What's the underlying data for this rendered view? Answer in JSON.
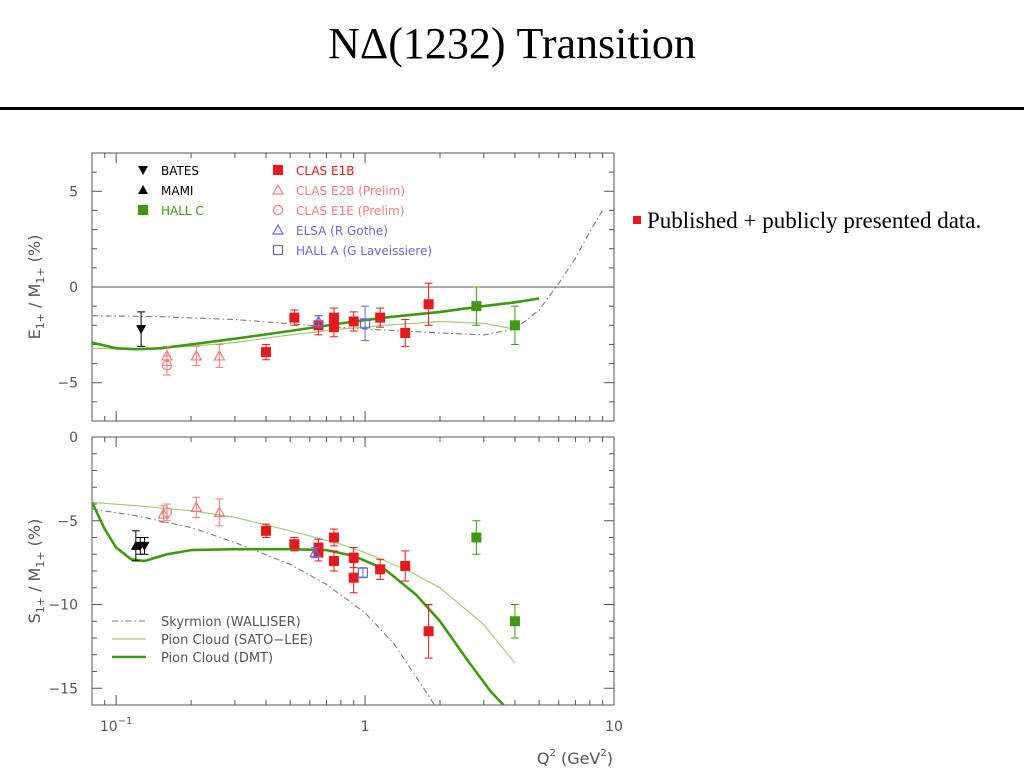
{
  "slide": {
    "title": "NΔ(1232) Transition",
    "bullet_text": "Published + publicly presented data."
  },
  "colors": {
    "red": "#e41a1c",
    "light_red": "#ef7d7d",
    "green": "#3f9a12",
    "light_green": "#a3cc78",
    "blue": "#6a6ad0",
    "gray": "#7a7a7a",
    "axis": "#555555"
  },
  "chart_data": [
    {
      "type": "scatter",
      "panel": "top",
      "x_scale": "log",
      "xlim": [
        0.08,
        10
      ],
      "ylim": [
        -7,
        7
      ],
      "yticks": [
        5,
        0,
        -5
      ],
      "ylabel_main": "E",
      "ylabel_sub1": "1+",
      "ylabel_mid": " / M",
      "ylabel_sub2": "1+",
      "ylabel_end": " (%)",
      "zero_line": true,
      "legend": [
        {
          "label": "BATES",
          "marker": "triangle-down",
          "color": "#000000"
        },
        {
          "label": "MAMI",
          "marker": "triangle-up",
          "color": "#000000"
        },
        {
          "label": "HALL C",
          "marker": "square",
          "color": "#3f9a12"
        },
        {
          "label": "CLAS E1B",
          "marker": "square",
          "color": "#e41a1c"
        },
        {
          "label": "CLAS E2B (Prelim)",
          "marker": "open-triangle",
          "color": "#ef7d7d"
        },
        {
          "label": "CLAS E1E (Prelim)",
          "marker": "open-circle",
          "color": "#ef7d7d"
        },
        {
          "label": "ELSA (R Gothe)",
          "marker": "open-triangle",
          "color": "#6a6ad0"
        },
        {
          "label": "HALL A (G Laveissiere)",
          "marker": "open-square",
          "color": "#6a6ad0"
        }
      ],
      "series": [
        {
          "marker": "triangle-down",
          "color": "#000000",
          "points": [
            [
              0.126,
              -2.2,
              0.9
            ]
          ]
        },
        {
          "marker": "square",
          "color": "#e41a1c",
          "points": [
            [
              0.4,
              -3.4,
              0.4
            ],
            [
              0.52,
              -1.6,
              0.4
            ],
            [
              0.65,
              -2.0,
              0.5
            ],
            [
              0.75,
              -1.6,
              0.5
            ],
            [
              0.75,
              -2.1,
              0.5
            ],
            [
              0.9,
              -1.8,
              0.5
            ],
            [
              1.15,
              -1.6,
              0.5
            ],
            [
              1.45,
              -2.4,
              0.7
            ],
            [
              1.8,
              -0.9,
              1.1
            ]
          ]
        },
        {
          "marker": "square",
          "color": "#3f9a12",
          "points": [
            [
              2.8,
              -1.0,
              1.0
            ],
            [
              4.0,
              -2.0,
              1.0
            ]
          ]
        },
        {
          "marker": "open-triangle",
          "color": "#ef7d7d",
          "points": [
            [
              0.16,
              -3.6,
              0.5
            ],
            [
              0.21,
              -3.6,
              0.5
            ],
            [
              0.26,
              -3.6,
              0.6
            ]
          ]
        },
        {
          "marker": "open-circle",
          "color": "#ef7d7d",
          "points": [
            [
              0.16,
              -4.1,
              0.5
            ]
          ]
        },
        {
          "marker": "open-triangle",
          "color": "#6a6ad0",
          "points": [
            [
              0.65,
              -1.8,
              0.3
            ]
          ]
        },
        {
          "marker": "open-square",
          "color": "#6a6ad0",
          "points": [
            [
              1.0,
              -1.9,
              0.9
            ]
          ]
        }
      ],
      "curves": [
        {
          "style": "dashdot",
          "color": "#7a7a7a",
          "points": [
            [
              0.08,
              -1.5
            ],
            [
              0.15,
              -1.55
            ],
            [
              0.3,
              -1.7
            ],
            [
              0.6,
              -2.0
            ],
            [
              1.0,
              -2.2
            ],
            [
              2.0,
              -2.4
            ],
            [
              3.0,
              -2.5
            ],
            [
              4.0,
              -2.2
            ],
            [
              5.0,
              -1.2
            ],
            [
              6.0,
              0.2
            ],
            [
              7.0,
              1.5
            ],
            [
              8.0,
              2.9
            ],
            [
              9.0,
              4.0
            ]
          ]
        },
        {
          "style": "thin",
          "color": "#a3cc78",
          "points": [
            [
              0.08,
              -3.2
            ],
            [
              0.12,
              -3.25
            ],
            [
              0.2,
              -3.1
            ],
            [
              0.3,
              -2.9
            ],
            [
              0.5,
              -2.5
            ],
            [
              0.8,
              -2.2
            ],
            [
              1.2,
              -2.0
            ],
            [
              2.0,
              -1.8
            ],
            [
              3.0,
              -1.9
            ],
            [
              4.0,
              -2.2
            ]
          ]
        },
        {
          "style": "thick",
          "color": "#3f9a12",
          "points": [
            [
              0.08,
              -2.9
            ],
            [
              0.1,
              -3.2
            ],
            [
              0.12,
              -3.25
            ],
            [
              0.15,
              -3.2
            ],
            [
              0.2,
              -3.0
            ],
            [
              0.3,
              -2.7
            ],
            [
              0.5,
              -2.3
            ],
            [
              0.8,
              -1.9
            ],
            [
              1.2,
              -1.6
            ],
            [
              2.0,
              -1.3
            ],
            [
              3.0,
              -1.0
            ],
            [
              4.0,
              -0.8
            ],
            [
              5.0,
              -0.6
            ]
          ]
        }
      ]
    },
    {
      "type": "scatter",
      "panel": "bottom",
      "x_scale": "log",
      "xlim": [
        0.08,
        10
      ],
      "ylim": [
        -16,
        0
      ],
      "yticks": [
        0,
        -5,
        -10,
        -15
      ],
      "xticks": [
        {
          "value": 0.1,
          "base": "10",
          "exp": "−1"
        },
        {
          "value": 1,
          "label": "1"
        },
        {
          "value": 10,
          "label": "10"
        }
      ],
      "xlabel_main": "Q",
      "xlabel_sup1": "2",
      "xlabel_mid": " (GeV",
      "xlabel_sup2": "2",
      "xlabel_end": ")",
      "ylabel_main": "S",
      "ylabel_sub1": "1+",
      "ylabel_mid": " / M",
      "ylabel_sub2": "1+",
      "ylabel_end": " (%)",
      "legend": [
        {
          "label": "Skyrmion (WALLISER)",
          "style": "dashdot",
          "color": "#7a7a7a"
        },
        {
          "label": "Pion Cloud (SATO−LEE)",
          "style": "thin",
          "color": "#a3cc78"
        },
        {
          "label": "Pion Cloud (DMT)",
          "style": "thick",
          "color": "#3f9a12"
        }
      ],
      "series": [
        {
          "marker": "triangle-down",
          "color": "#000000",
          "points": [
            [
              0.125,
              -6.5,
              0.5
            ],
            [
              0.13,
              -6.5,
              0.5
            ]
          ]
        },
        {
          "marker": "triangle-up",
          "color": "#000000",
          "points": [
            [
              0.12,
              -6.5,
              0.9
            ]
          ]
        },
        {
          "marker": "square",
          "color": "#e41a1c",
          "points": [
            [
              0.4,
              -5.6,
              0.4
            ],
            [
              0.52,
              -6.4,
              0.4
            ],
            [
              0.65,
              -6.6,
              0.5
            ],
            [
              0.65,
              -6.9,
              0.5
            ],
            [
              0.75,
              -6.0,
              0.5
            ],
            [
              0.75,
              -7.4,
              0.6
            ],
            [
              0.9,
              -7.2,
              0.6
            ],
            [
              0.9,
              -8.4,
              0.9
            ],
            [
              1.15,
              -7.9,
              0.6
            ],
            [
              1.45,
              -7.7,
              0.9
            ],
            [
              1.8,
              -11.6,
              1.6
            ]
          ]
        },
        {
          "marker": "square",
          "color": "#3f9a12",
          "points": [
            [
              2.8,
              -6.0,
              1.0
            ],
            [
              4.0,
              -11.0,
              1.0
            ]
          ]
        },
        {
          "marker": "open-triangle",
          "color": "#ef7d7d",
          "points": [
            [
              0.155,
              -4.6,
              0.5
            ],
            [
              0.21,
              -4.2,
              0.6
            ],
            [
              0.26,
              -4.5,
              0.8
            ]
          ]
        },
        {
          "marker": "open-circle",
          "color": "#ef7d7d",
          "points": [
            [
              0.16,
              -4.5,
              0.5
            ]
          ]
        },
        {
          "marker": "open-triangle",
          "color": "#6a6ad0",
          "points": [
            [
              0.63,
              -6.9,
              0.3
            ]
          ]
        },
        {
          "marker": "open-square",
          "color": "#6a6ad0",
          "points": [
            [
              0.98,
              -8.1,
              0.3
            ]
          ]
        }
      ],
      "curves": [
        {
          "style": "dashdot",
          "color": "#7a7a7a",
          "points": [
            [
              0.08,
              -4.3
            ],
            [
              0.12,
              -4.7
            ],
            [
              0.2,
              -5.4
            ],
            [
              0.3,
              -6.3
            ],
            [
              0.5,
              -7.6
            ],
            [
              0.7,
              -8.8
            ],
            [
              1.0,
              -10.5
            ],
            [
              1.3,
              -12.3
            ],
            [
              1.6,
              -14.3
            ],
            [
              1.9,
              -16.0
            ]
          ]
        },
        {
          "style": "thin",
          "color": "#a3cc78",
          "points": [
            [
              0.08,
              -3.9
            ],
            [
              0.12,
              -4.1
            ],
            [
              0.2,
              -4.4
            ],
            [
              0.3,
              -4.8
            ],
            [
              0.5,
              -5.6
            ],
            [
              0.8,
              -6.4
            ],
            [
              1.0,
              -6.9
            ],
            [
              1.5,
              -8.0
            ],
            [
              2.0,
              -9.0
            ],
            [
              3.0,
              -11.2
            ],
            [
              4.0,
              -13.5
            ]
          ]
        },
        {
          "style": "thick",
          "color": "#3f9a12",
          "points": [
            [
              0.08,
              -3.9
            ],
            [
              0.09,
              -5.5
            ],
            [
              0.1,
              -6.6
            ],
            [
              0.115,
              -7.3
            ],
            [
              0.13,
              -7.4
            ],
            [
              0.16,
              -7.0
            ],
            [
              0.2,
              -6.75
            ],
            [
              0.3,
              -6.7
            ],
            [
              0.5,
              -6.7
            ],
            [
              0.7,
              -6.75
            ],
            [
              0.9,
              -7.1
            ],
            [
              1.2,
              -7.9
            ],
            [
              1.6,
              -9.4
            ],
            [
              2.0,
              -11.0
            ],
            [
              2.6,
              -13.4
            ],
            [
              3.2,
              -15.2
            ],
            [
              3.6,
              -16.0
            ]
          ]
        }
      ]
    }
  ]
}
